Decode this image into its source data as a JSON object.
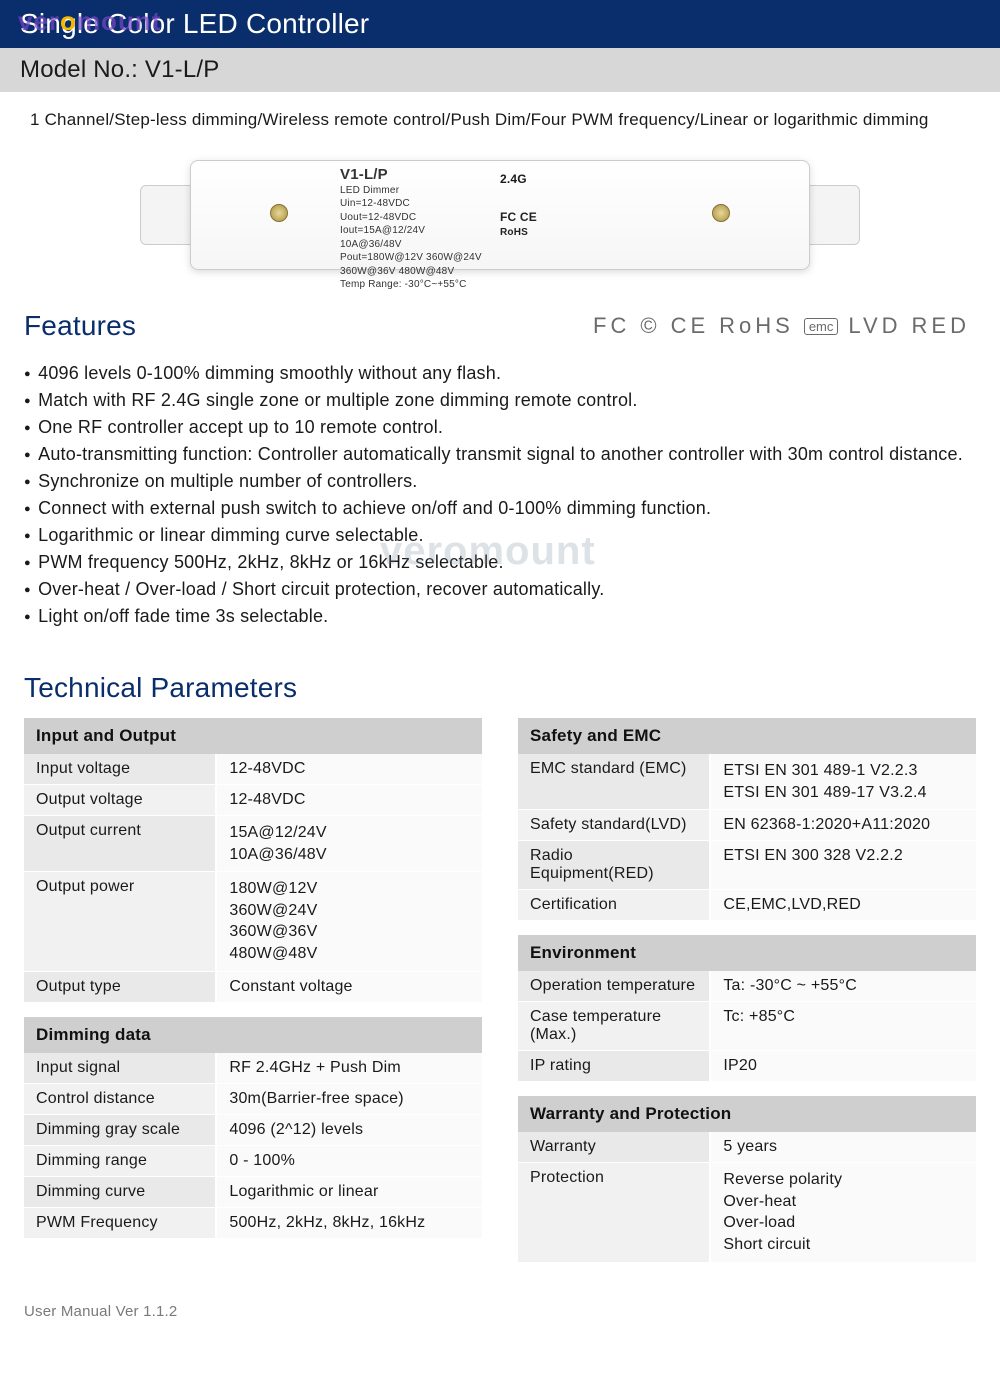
{
  "header": {
    "title": "Single Color LED Controller"
  },
  "model": {
    "label": "Model No.: V1-L/P"
  },
  "subtitle": "1 Channel/Step-less dimming/Wireless remote control/Push Dim/Four PWM frequency/Linear or logarithmic dimming",
  "watermark": {
    "text": "veromount"
  },
  "device_label": {
    "model": "V1-L/P",
    "sub": "LED Dimmer",
    "lines": "Uin=12-48VDC\nUout=12-48VDC\nIout=15A@12/24V\n        10A@36/48V\nPout=180W@12V 360W@24V\n        360W@36V 480W@48V\nTemp Range: -30°C~+55°C",
    "wifi": "2.4G"
  },
  "features": {
    "title": "Features",
    "cert_text": [
      "FC",
      "©",
      "CE",
      "RoHS",
      "emc",
      "LVD",
      "RED"
    ],
    "items": [
      "4096 levels 0-100% dimming smoothly without any flash.",
      "Match with RF 2.4G single zone or multiple zone dimming remote control.",
      "One RF controller accept up to 10 remote control.",
      "Auto-transmitting function: Controller automatically transmit signal to another controller with 30m control distance.",
      "Synchronize on multiple number of controllers.",
      "Connect with external push switch to achieve on/off and 0-100% dimming function.",
      "Logarithmic or linear dimming curve selectable.",
      "PWM frequency 500Hz, 2kHz, 8kHz or 16kHz selectable.",
      "Over-heat / Over-load / Short circuit protection, recover automatically.",
      "Light on/off fade time 3s selectable."
    ]
  },
  "tech": {
    "title": "Technical Parameters",
    "left": [
      {
        "group": "Input and Output",
        "rows": [
          [
            "Input voltage",
            "12-48VDC"
          ],
          [
            "Output voltage",
            "12-48VDC"
          ],
          [
            "Output current",
            "15A@12/24V\n10A@36/48V"
          ],
          [
            "Output power",
            "180W@12V\n360W@24V\n360W@36V\n480W@48V"
          ],
          [
            "Output type",
            "Constant voltage"
          ]
        ]
      },
      {
        "group": "Dimming data",
        "rows": [
          [
            "Input signal",
            "RF 2.4GHz + Push Dim"
          ],
          [
            "Control distance",
            "30m(Barrier-free space)"
          ],
          [
            "Dimming gray scale",
            "4096 (2^12) levels"
          ],
          [
            "Dimming range",
            "0 - 100%"
          ],
          [
            "Dimming curve",
            "Logarithmic or linear"
          ],
          [
            "PWM Frequency",
            "500Hz, 2kHz, 8kHz, 16kHz"
          ]
        ]
      }
    ],
    "right": [
      {
        "group": "Safety and EMC",
        "rows": [
          [
            "EMC standard (EMC)",
            "ETSI EN 301 489-1 V2.2.3\nETSI EN 301 489-17 V3.2.4"
          ],
          [
            "Safety standard(LVD)",
            "EN 62368-1:2020+A11:2020"
          ],
          [
            "Radio Equipment(RED)",
            "ETSI EN 300 328 V2.2.2"
          ],
          [
            "Certification",
            "CE,EMC,LVD,RED"
          ]
        ]
      },
      {
        "group": "Environment",
        "rows": [
          [
            "Operation temperature",
            "Ta: -30°C ~ +55°C"
          ],
          [
            "Case temperature (Max.)",
            "Tc: +85°C"
          ],
          [
            "IP rating",
            "IP20"
          ]
        ]
      },
      {
        "group": "Warranty and Protection",
        "rows": [
          [
            "Warranty",
            "5 years"
          ],
          [
            "Protection",
            "Reverse polarity\nOver-heat\nOver-load\nShort circuit"
          ]
        ]
      }
    ]
  },
  "footer": "User Manual Ver 1.1.2",
  "colors": {
    "header_bg": "#0a2e6b",
    "model_bg": "#d7d7d7",
    "group_bg": "#cfcfcf",
    "label_bg": "#e9e9e9",
    "val_bg": "#fafafa",
    "title_color": "#0a2e6b"
  }
}
